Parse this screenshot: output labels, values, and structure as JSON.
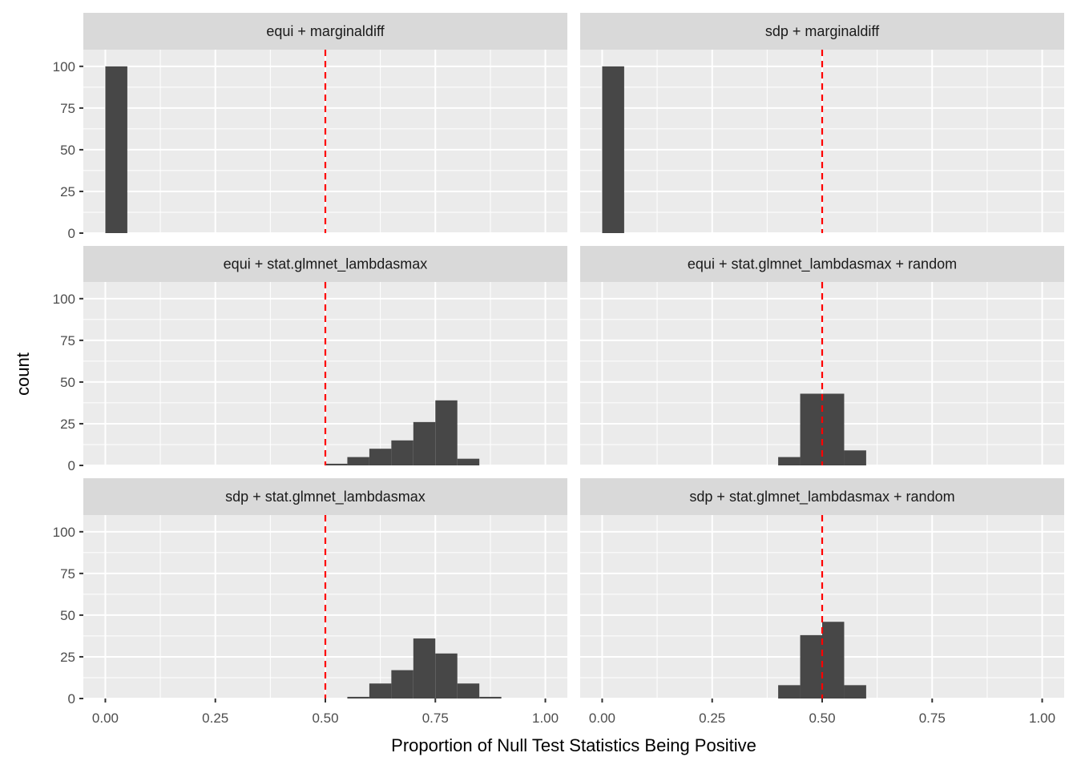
{
  "chart_data": {
    "type": "bar",
    "subtype": "faceted-histogram",
    "xlabel": "Proportion of Null Test Statistics Being Positive",
    "ylabel": "count",
    "xlim": [
      -0.05,
      1.05
    ],
    "ylim": [
      0,
      110
    ],
    "xticks": [
      0,
      0.25,
      0.5,
      0.75,
      1.0
    ],
    "xtick_labels": [
      "0.00",
      "0.25",
      "0.50",
      "0.75",
      "1.00"
    ],
    "yticks": [
      0,
      25,
      50,
      75,
      100
    ],
    "ytick_labels": [
      "0",
      "25",
      "50",
      "75",
      "100"
    ],
    "bin_width": 0.05,
    "reference_line": {
      "x": 0.5,
      "color": "#ff0000",
      "style": "dashed"
    },
    "bar_color": "#474747",
    "grid": true,
    "panels": [
      {
        "title": "equi + marginaldiff",
        "bins": [
          {
            "x0": 0.0,
            "count": 100
          }
        ]
      },
      {
        "title": "sdp + marginaldiff",
        "bins": [
          {
            "x0": 0.0,
            "count": 100
          }
        ]
      },
      {
        "title": "equi + stat.glmnet_lambdasmax",
        "bins": [
          {
            "x0": 0.5,
            "count": 1
          },
          {
            "x0": 0.55,
            "count": 5
          },
          {
            "x0": 0.6,
            "count": 10
          },
          {
            "x0": 0.65,
            "count": 15
          },
          {
            "x0": 0.7,
            "count": 26
          },
          {
            "x0": 0.75,
            "count": 39
          },
          {
            "x0": 0.8,
            "count": 4
          }
        ]
      },
      {
        "title": "equi + stat.glmnet_lambdasmax + random",
        "bins": [
          {
            "x0": 0.4,
            "count": 5
          },
          {
            "x0": 0.45,
            "count": 43
          },
          {
            "x0": 0.5,
            "count": 43
          },
          {
            "x0": 0.55,
            "count": 9
          }
        ]
      },
      {
        "title": "sdp + stat.glmnet_lambdasmax",
        "bins": [
          {
            "x0": 0.55,
            "count": 1
          },
          {
            "x0": 0.6,
            "count": 9
          },
          {
            "x0": 0.65,
            "count": 17
          },
          {
            "x0": 0.7,
            "count": 36
          },
          {
            "x0": 0.75,
            "count": 27
          },
          {
            "x0": 0.8,
            "count": 9
          },
          {
            "x0": 0.85,
            "count": 1
          }
        ]
      },
      {
        "title": "sdp + stat.glmnet_lambdasmax + random",
        "bins": [
          {
            "x0": 0.4,
            "count": 8
          },
          {
            "x0": 0.45,
            "count": 38
          },
          {
            "x0": 0.5,
            "count": 46
          },
          {
            "x0": 0.55,
            "count": 8
          }
        ]
      }
    ]
  }
}
